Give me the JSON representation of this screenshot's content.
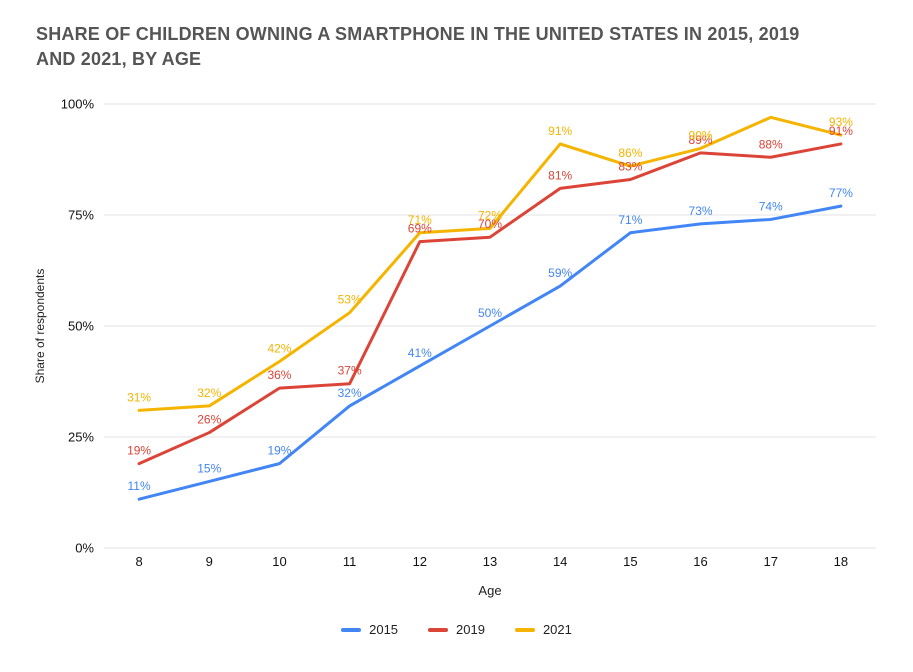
{
  "title_display": {
    "line1": "SHARE OF CHILDREN OWNING A SMARTPHONE IN THE UNITED STATES IN 2015, 2019",
    "line2": "AND 2021, BY AGE"
  },
  "colors": {
    "series_2015": "#4285f4",
    "series_2019": "#db4437",
    "series_2021": "#f4b400",
    "gridline": "#e3e3e3",
    "tick_text": "#111111",
    "title_text": "#555555"
  },
  "chart_data": {
    "type": "line",
    "title": "SHARE OF CHILDREN OWNING A SMARTPHONE IN THE UNITED STATES IN 2015, 2019 AND 2021, BY AGE",
    "xlabel": "Age",
    "ylabel": "Share of respondents",
    "x": [
      8,
      9,
      10,
      11,
      12,
      13,
      14,
      15,
      16,
      17,
      18
    ],
    "ylim": [
      0,
      100
    ],
    "ytick_values": [
      0,
      25,
      50,
      75,
      100
    ],
    "ytick_labels": [
      "0%",
      "25%",
      "50%",
      "75%",
      "100%"
    ],
    "grid": true,
    "legend_position": "bottom",
    "series": [
      {
        "name": "2015",
        "color": "#4285f4",
        "values": [
          11,
          15,
          19,
          32,
          41,
          50,
          59,
          71,
          73,
          74,
          77
        ],
        "labels": [
          "11%",
          "15%",
          "19%",
          "32%",
          "41%",
          "50%",
          "59%",
          "71%",
          "73%",
          "74%",
          "77%"
        ]
      },
      {
        "name": "2019",
        "color": "#db4437",
        "values": [
          19,
          26,
          36,
          37,
          69,
          70,
          81,
          83,
          89,
          88,
          91
        ],
        "labels": [
          "19%",
          "26%",
          "36%",
          "37%",
          "69%",
          "70%",
          "81%",
          "83%",
          "89%",
          "88%",
          "91%"
        ]
      },
      {
        "name": "2021",
        "color": "#f4b400",
        "values": [
          31,
          32,
          42,
          53,
          71,
          72,
          91,
          86,
          90,
          97,
          93
        ],
        "labels": [
          "31%",
          "32%",
          "42%",
          "53%",
          "71%",
          "72%",
          "91%",
          "86%",
          "90%",
          null,
          "93%"
        ]
      }
    ]
  }
}
